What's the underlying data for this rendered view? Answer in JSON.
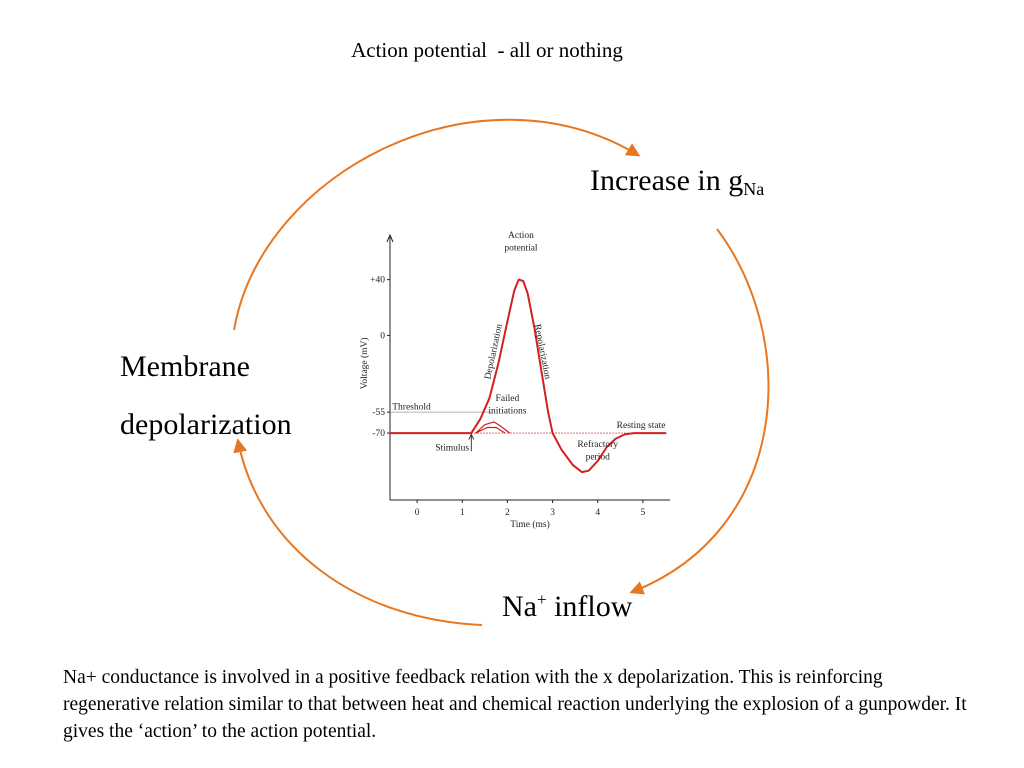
{
  "slide": {
    "title": "Action potential  - all or nothing",
    "nodes": {
      "increase_text": "Increase in g",
      "increase_sub": "Na",
      "membrane_line1": "Membrane",
      "membrane_line2": "depolarization",
      "inflow_na": "Na",
      "inflow_sup": "+",
      "inflow_text": " inflow"
    },
    "caption": "Na+ conductance is involved in a positive feedback relation with the x depolarization. This is reinforcing regenerative relation similar to that between heat and chemical reaction underlying the explosion of a gunpowder. It gives the ‘action’ to the action potential.",
    "arrow_color": "#e87722"
  },
  "chart_data": {
    "type": "line",
    "xlabel": "Time (ms)",
    "ylabel": "Voltage (mV)",
    "x_ticks": [
      0,
      1,
      2,
      3,
      4,
      5
    ],
    "y_ticks": [
      {
        "value": 40,
        "label": "+40"
      },
      {
        "value": 0,
        "label": "0"
      },
      {
        "value": -55,
        "label": "-55"
      },
      {
        "value": -70,
        "label": "-70"
      }
    ],
    "xlim": [
      -0.6,
      5.6
    ],
    "ylim": [
      -118,
      72
    ],
    "series": [
      {
        "color": "#d42020",
        "points": [
          [
            -0.6,
            -70
          ],
          [
            1.2,
            -70
          ],
          [
            1.4,
            -60
          ],
          [
            1.6,
            -45
          ],
          [
            1.8,
            -20
          ],
          [
            2.0,
            10
          ],
          [
            2.15,
            32
          ],
          [
            2.25,
            40
          ],
          [
            2.35,
            39
          ],
          [
            2.45,
            30
          ],
          [
            2.6,
            5
          ],
          [
            2.75,
            -25
          ],
          [
            2.9,
            -55
          ],
          [
            3.0,
            -70
          ],
          [
            3.2,
            -82
          ],
          [
            3.45,
            -93
          ],
          [
            3.65,
            -98
          ],
          [
            3.8,
            -97
          ],
          [
            4.0,
            -90
          ],
          [
            4.2,
            -80
          ],
          [
            4.4,
            -74
          ],
          [
            4.6,
            -71
          ],
          [
            4.8,
            -70
          ],
          [
            5.5,
            -70
          ]
        ]
      }
    ],
    "failed_initiations": [
      [
        [
          1.3,
          -70
        ],
        [
          1.5,
          -64
        ],
        [
          1.7,
          -62
        ],
        [
          1.85,
          -65
        ],
        [
          2.05,
          -70
        ]
      ],
      [
        [
          1.3,
          -70
        ],
        [
          1.55,
          -66
        ],
        [
          1.75,
          -66
        ],
        [
          1.95,
          -70
        ]
      ]
    ],
    "threshold": -55,
    "resting": -70,
    "annotations": {
      "action_potential_line1": "Action",
      "action_potential_line2": "potential",
      "depolarization": "Depolarization",
      "repolarization": "Repolarization",
      "threshold": "Threshold",
      "failed_line1": "Failed",
      "failed_line2": "initiations",
      "resting_state": "Resting state",
      "stimulus": "Stimulus",
      "refractory_line1": "Refractory",
      "refractory_line2": "period"
    }
  }
}
